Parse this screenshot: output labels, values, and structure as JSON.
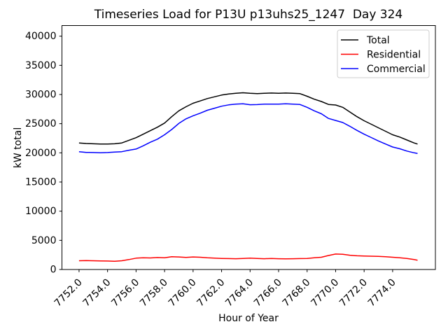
{
  "figure": {
    "background": "#ffffff",
    "spine_color": "#000000",
    "legend_border_color": "#cccccc",
    "legend_background": "#ffffff"
  },
  "chart_data": {
    "type": "line",
    "title": "Timeseries Load for P13U p13uhs25_1247  Day 324",
    "xlabel": "Hour of Year",
    "ylabel": "kW total",
    "xlim": [
      7750.8,
      7777.0
    ],
    "ylim": [
      0,
      41820
    ],
    "grid": false,
    "legend_position": "upper right",
    "xticks": [
      7752,
      7754,
      7756,
      7758,
      7760,
      7762,
      7764,
      7766,
      7768,
      7770,
      7772,
      7774
    ],
    "xtick_labels": [
      "7752.0",
      "7754.0",
      "7756.0",
      "7758.0",
      "7760.0",
      "7762.0",
      "7764.0",
      "7766.0",
      "7768.0",
      "7770.0",
      "7772.0",
      "7774.0"
    ],
    "yticks": [
      0,
      5000,
      10000,
      15000,
      20000,
      25000,
      30000,
      35000,
      40000
    ],
    "ytick_labels": [
      "0",
      "5000",
      "10000",
      "15000",
      "20000",
      "25000",
      "30000",
      "35000",
      "40000"
    ],
    "x": [
      7752.0,
      7752.5,
      7753.0,
      7753.5,
      7754.0,
      7754.5,
      7755.0,
      7755.5,
      7756.0,
      7756.5,
      7757.0,
      7757.5,
      7758.0,
      7758.5,
      7759.0,
      7759.5,
      7760.0,
      7760.5,
      7761.0,
      7761.5,
      7762.0,
      7762.5,
      7763.0,
      7763.5,
      7764.0,
      7764.5,
      7765.0,
      7765.5,
      7766.0,
      7766.5,
      7767.0,
      7767.5,
      7768.0,
      7768.5,
      7769.0,
      7769.5,
      7770.0,
      7770.5,
      7771.0,
      7771.5,
      7772.0,
      7772.5,
      7773.0,
      7773.5,
      7774.0,
      7774.5,
      7775.0,
      7775.5,
      7775.75
    ],
    "series": [
      {
        "name": "Total",
        "color": "#000000",
        "values": [
          21700,
          21600,
          21550,
          21500,
          21500,
          21550,
          21700,
          22150,
          22600,
          23200,
          23800,
          24400,
          25100,
          26200,
          27200,
          27900,
          28500,
          28900,
          29300,
          29600,
          29900,
          30100,
          30200,
          30300,
          30200,
          30150,
          30200,
          30250,
          30200,
          30250,
          30200,
          30150,
          29700,
          29200,
          28800,
          28300,
          28200,
          27800,
          27000,
          26200,
          25500,
          24900,
          24300,
          23700,
          23100,
          22700,
          22200,
          21700,
          21500
        ]
      },
      {
        "name": "Residential",
        "color": "#ff0000",
        "values": [
          1500,
          1520,
          1500,
          1480,
          1450,
          1420,
          1500,
          1700,
          1950,
          2000,
          1980,
          2050,
          2000,
          2200,
          2150,
          2080,
          2150,
          2100,
          2000,
          1950,
          1900,
          1870,
          1850,
          1900,
          1950,
          1880,
          1850,
          1900,
          1850,
          1830,
          1850,
          1870,
          1900,
          2000,
          2100,
          2400,
          2650,
          2600,
          2450,
          2350,
          2300,
          2280,
          2250,
          2180,
          2100,
          2000,
          1900,
          1700,
          1600
        ]
      },
      {
        "name": "Commercial",
        "color": "#0000ff",
        "values": [
          20200,
          20080,
          20050,
          20020,
          20050,
          20130,
          20200,
          20450,
          20650,
          21200,
          21820,
          22350,
          23100,
          24000,
          25050,
          25820,
          26350,
          26800,
          27300,
          27650,
          28000,
          28230,
          28350,
          28400,
          28250,
          28270,
          28350,
          28350,
          28350,
          28420,
          28350,
          28280,
          27800,
          27200,
          26700,
          25900,
          25550,
          25200,
          24550,
          23850,
          23200,
          22620,
          22050,
          21520,
          21000,
          20700,
          20300,
          20000,
          19900
        ]
      }
    ]
  }
}
